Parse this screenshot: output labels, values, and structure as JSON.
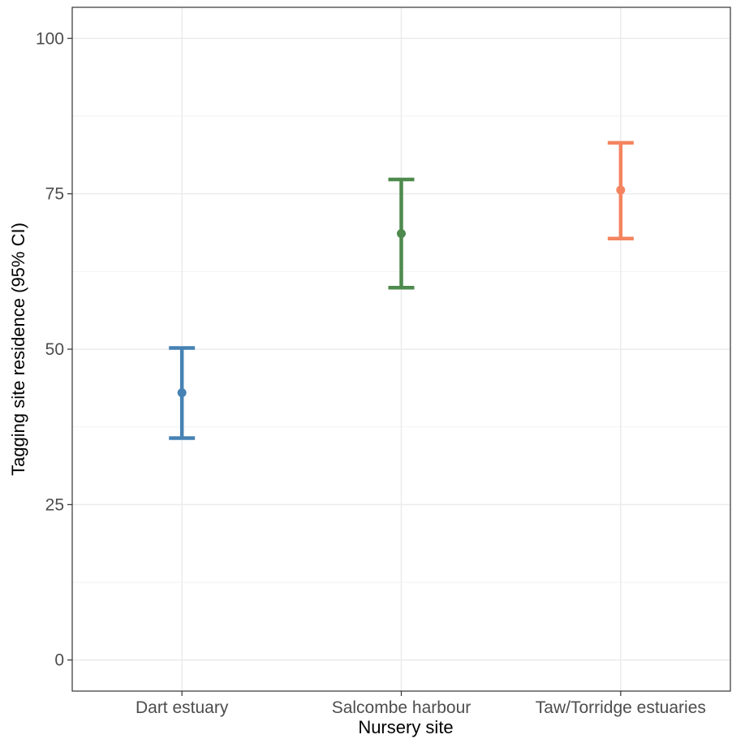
{
  "chart_data": {
    "type": "errorbar",
    "xlabel": "Nursery site",
    "ylabel": "Tagging site residence  (95% CI)",
    "ylim": [
      -5,
      105
    ],
    "yticks": [
      0,
      25,
      50,
      75,
      100
    ],
    "grid": true,
    "categories": [
      "Dart estuary",
      "Salcombe harbour",
      "Taw/Torridge estuaries"
    ],
    "points": [
      {
        "category": "Dart estuary",
        "estimate": 43.0,
        "lower": 35.7,
        "upper": 50.2,
        "color": "#4682b4"
      },
      {
        "category": "Salcombe harbour",
        "estimate": 68.6,
        "lower": 59.9,
        "upper": 77.3,
        "color": "#4e8a4e"
      },
      {
        "category": "Taw/Torridge estuaries",
        "estimate": 75.6,
        "lower": 67.8,
        "upper": 83.2,
        "color": "#f4845f"
      }
    ]
  }
}
